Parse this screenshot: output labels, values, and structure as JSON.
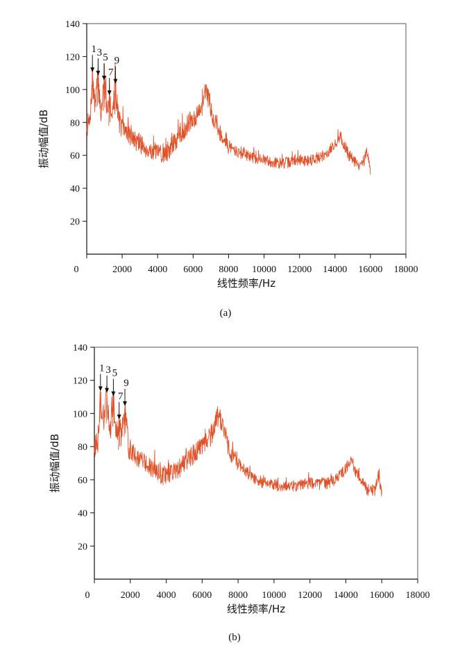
{
  "figure": {
    "colors": {
      "series": "#e0522a",
      "axis": "#111111",
      "frame": "#555555"
    }
  },
  "chart_data": [
    {
      "panel": "a",
      "type": "line",
      "caption": "(a)",
      "xlabel": "线性频率/Hz",
      "ylabel": "振动幅值/dB",
      "xlim": [
        0,
        18000
      ],
      "ylim": [
        0,
        140
      ],
      "x_ticks": [
        0,
        2000,
        4000,
        6000,
        8000,
        10000,
        12000,
        14000,
        16000,
        18000
      ],
      "y_ticks": [
        20,
        40,
        60,
        80,
        100,
        120,
        140
      ],
      "y_tick_labels": [
        "20",
        "40",
        "60",
        "80",
        "100",
        "120",
        "140"
      ],
      "harmonics": [
        {
          "label": "1",
          "x": 320,
          "y": 110
        },
        {
          "label": "3",
          "x": 640,
          "y": 108
        },
        {
          "label": "5",
          "x": 980,
          "y": 105
        },
        {
          "label": "7",
          "x": 1280,
          "y": 96
        },
        {
          "label": "9",
          "x": 1620,
          "y": 103
        }
      ],
      "series": [
        {
          "name": "vibration amplitude",
          "x": [
            0,
            200,
            320,
            450,
            640,
            800,
            980,
            1130,
            1280,
            1450,
            1620,
            1800,
            2000,
            2300,
            2600,
            3000,
            3400,
            3800,
            4200,
            4600,
            5000,
            5400,
            5800,
            6200,
            6500,
            6700,
            6900,
            7100,
            7500,
            8000,
            8500,
            9000,
            9500,
            10000,
            10500,
            11000,
            11500,
            12000,
            12500,
            13000,
            13400,
            13800,
            14100,
            14300,
            14500,
            14800,
            15200,
            15600,
            15800,
            16000
          ],
          "values": [
            78,
            80,
            110,
            90,
            108,
            85,
            105,
            88,
            96,
            84,
            103,
            82,
            76,
            74,
            70,
            67,
            64,
            62,
            60,
            63,
            68,
            74,
            80,
            84,
            88,
            99,
            94,
            84,
            74,
            66,
            62,
            60,
            58,
            57,
            56,
            55,
            56,
            57,
            57,
            58,
            60,
            64,
            68,
            72,
            66,
            60,
            55,
            54,
            62,
            50
          ]
        }
      ]
    },
    {
      "panel": "b",
      "type": "line",
      "caption": "(b)",
      "xlabel": "线性频率/Hz",
      "ylabel": "振动幅值/dB",
      "xlim": [
        0,
        18000
      ],
      "ylim": [
        0,
        140
      ],
      "x_ticks": [
        0,
        2000,
        4000,
        6000,
        8000,
        10000,
        12000,
        14000,
        16000,
        18000
      ],
      "y_ticks": [
        20,
        40,
        60,
        80,
        100,
        120,
        140
      ],
      "y_tick_labels": [
        "20",
        "40",
        "60",
        "80",
        "100",
        "120",
        "140"
      ],
      "harmonics": [
        {
          "label": "1",
          "x": 340,
          "y": 113
        },
        {
          "label": "3",
          "x": 700,
          "y": 112
        },
        {
          "label": "5",
          "x": 1060,
          "y": 110
        },
        {
          "label": "7",
          "x": 1380,
          "y": 96
        },
        {
          "label": "9",
          "x": 1700,
          "y": 104
        }
      ],
      "series": [
        {
          "name": "vibration amplitude",
          "x": [
            0,
            200,
            340,
            500,
            700,
            880,
            1060,
            1220,
            1380,
            1540,
            1700,
            1900,
            2200,
            2600,
            3000,
            3400,
            3800,
            4200,
            4600,
            5000,
            5400,
            5800,
            6200,
            6600,
            6800,
            7000,
            7200,
            7500,
            8000,
            8500,
            9000,
            9500,
            10000,
            10500,
            11000,
            11500,
            12000,
            12500,
            13000,
            13400,
            13800,
            14100,
            14300,
            14500,
            14800,
            15200,
            15600,
            15800,
            16000
          ],
          "values": [
            80,
            82,
            113,
            92,
            112,
            88,
            110,
            86,
            96,
            82,
            104,
            80,
            76,
            72,
            68,
            64,
            62,
            64,
            66,
            70,
            74,
            78,
            82,
            88,
            98,
            96,
            92,
            78,
            70,
            64,
            60,
            58,
            57,
            56,
            56,
            57,
            58,
            57,
            58,
            60,
            64,
            68,
            72,
            66,
            60,
            54,
            52,
            63,
            51
          ]
        }
      ]
    }
  ]
}
